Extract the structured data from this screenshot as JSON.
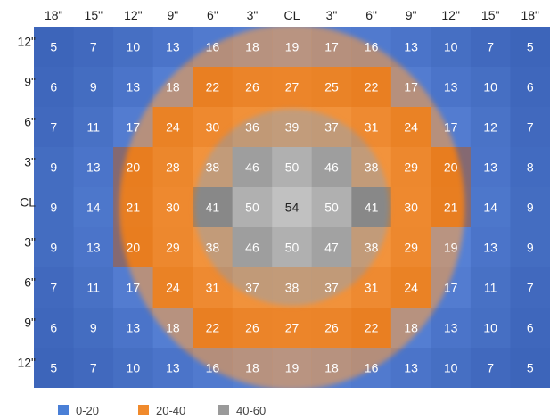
{
  "chart_data": {
    "type": "heatmap",
    "x_labels": [
      "18\"",
      "15\"",
      "12\"",
      "9\"",
      "6\"",
      "3\"",
      "CL",
      "3\"",
      "6\"",
      "9\"",
      "12\"",
      "15\"",
      "18\""
    ],
    "y_labels": [
      "12\"",
      "9\"",
      "6\"",
      "3\"",
      "CL",
      "3\"",
      "6\"",
      "9\"",
      "12\""
    ],
    "values": [
      [
        5,
        7,
        10,
        13,
        16,
        18,
        19,
        17,
        16,
        13,
        10,
        7,
        5
      ],
      [
        6,
        9,
        13,
        18,
        22,
        26,
        27,
        25,
        22,
        17,
        13,
        10,
        6
      ],
      [
        7,
        11,
        17,
        24,
        30,
        36,
        39,
        37,
        31,
        24,
        17,
        12,
        7
      ],
      [
        9,
        13,
        20,
        28,
        38,
        46,
        50,
        46,
        38,
        29,
        20,
        13,
        8
      ],
      [
        9,
        14,
        21,
        30,
        41,
        50,
        54,
        50,
        41,
        30,
        21,
        14,
        9
      ],
      [
        9,
        13,
        20,
        29,
        38,
        46,
        50,
        47,
        38,
        29,
        19,
        13,
        9
      ],
      [
        7,
        11,
        17,
        24,
        31,
        37,
        38,
        37,
        31,
        24,
        17,
        11,
        7
      ],
      [
        6,
        9,
        13,
        18,
        22,
        26,
        27,
        26,
        22,
        18,
        13,
        10,
        6
      ],
      [
        5,
        7,
        10,
        13,
        16,
        18,
        19,
        18,
        16,
        13,
        10,
        7,
        5
      ]
    ],
    "legend": [
      {
        "label": "0-20",
        "min": 0,
        "max": 20,
        "color": "#4a7fd6"
      },
      {
        "label": "20-40",
        "min": 20,
        "max": 40,
        "color": "#f08a2c"
      },
      {
        "label": "40-60",
        "min": 40,
        "max": 60,
        "color": "#9a9a9a"
      }
    ],
    "legend_position": "bottom-left"
  }
}
